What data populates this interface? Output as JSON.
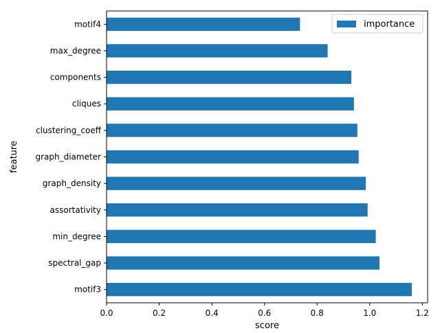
{
  "chart_data": {
    "type": "bar",
    "orientation": "horizontal",
    "categories": [
      "motif4",
      "max_degree",
      "components",
      "cliques",
      "clustering_coeff",
      "graph_diameter",
      "graph_density",
      "assortativity",
      "min_degree",
      "spectral_gap",
      "motif3"
    ],
    "series": [
      {
        "name": "importance",
        "color": "#1f77b4",
        "values": [
          0.735,
          0.84,
          0.93,
          0.94,
          0.953,
          0.958,
          0.985,
          0.992,
          1.023,
          1.037,
          1.16
        ]
      }
    ],
    "xlabel": "score",
    "ylabel": "feature",
    "xlim": [
      0.0,
      1.22
    ],
    "xticks": [
      "0.0",
      "0.2",
      "0.4",
      "0.6",
      "0.8",
      "1.0",
      "1.2"
    ],
    "grid": false,
    "legend_position": "top-right"
  }
}
